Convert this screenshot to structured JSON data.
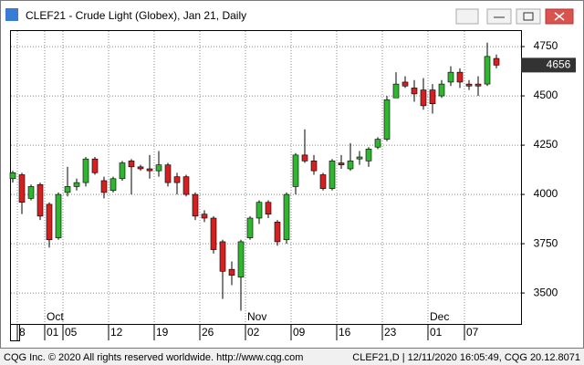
{
  "chart_data": {
    "type": "candlestick",
    "title": "CLEF21 - Crude Light (Globex), Jan 21, Daily",
    "footer_left": "CQG Inc. © 2020 All rights reserved worldwide. http://www.cqg.com",
    "footer_right": "CLEF21,D | 12/11/2020 16:05:49, CQG 20.12.8071",
    "categories": [
      null,
      "8",
      null,
      null,
      "01",
      null,
      "05",
      null,
      null,
      null,
      null,
      "12",
      null,
      null,
      null,
      null,
      "19",
      null,
      null,
      null,
      null,
      "26",
      null,
      null,
      null,
      null,
      "02",
      null,
      null,
      null,
      null,
      "09",
      null,
      null,
      null,
      null,
      "16",
      null,
      null,
      null,
      null,
      "23",
      null,
      null,
      null,
      null,
      "01",
      null,
      null,
      null,
      "07",
      null,
      null,
      null,
      null
    ],
    "months": [
      null,
      null,
      null,
      null,
      "Oct",
      null,
      null,
      null,
      null,
      null,
      null,
      null,
      null,
      null,
      null,
      null,
      null,
      null,
      null,
      null,
      null,
      null,
      null,
      null,
      null,
      null,
      "Nov",
      null,
      null,
      null,
      null,
      null,
      null,
      null,
      null,
      null,
      null,
      null,
      null,
      null,
      null,
      null,
      null,
      null,
      null,
      null,
      "Dec",
      null,
      null,
      null,
      null,
      null,
      null,
      null
    ],
    "open": [
      4080,
      4100,
      3980,
      4050,
      3950,
      3780,
      4010,
      4040,
      4060,
      4180,
      4070,
      4020,
      4080,
      4170,
      4140,
      4130,
      4120,
      4150,
      4090,
      4090,
      4000,
      3900,
      3880,
      3760,
      3620,
      3580,
      3780,
      3880,
      3960,
      3860,
      3770,
      4040,
      4200,
      4170,
      4100,
      4030,
      4160,
      4130,
      4180,
      4170,
      4240,
      4280,
      4490,
      4570,
      4540,
      4530,
      4530,
      4500,
      4570,
      4620,
      4560,
      4560,
      4560,
      4690
    ],
    "high": [
      4120,
      4110,
      4050,
      4060,
      3960,
      4010,
      4140,
      4080,
      4190,
      4190,
      4090,
      4090,
      4170,
      4180,
      4150,
      4200,
      4220,
      4160,
      4110,
      4100,
      4010,
      3920,
      3890,
      3770,
      3660,
      3770,
      3890,
      3970,
      3970,
      3870,
      4010,
      4210,
      4330,
      4200,
      4110,
      4180,
      4200,
      4260,
      4220,
      4240,
      4290,
      4500,
      4620,
      4600,
      4580,
      4590,
      4560,
      4580,
      4650,
      4640,
      4580,
      4600,
      4770,
      4710
    ],
    "low": [
      4060,
      3900,
      3970,
      3870,
      3730,
      3770,
      3990,
      4020,
      4040,
      4100,
      3980,
      4010,
      4070,
      4000,
      4120,
      4080,
      4090,
      4040,
      4000,
      3990,
      3870,
      3860,
      3700,
      3470,
      3540,
      3410,
      3770,
      3850,
      3880,
      3740,
      3750,
      4000,
      4160,
      4100,
      4020,
      4020,
      4130,
      4120,
      4150,
      4140,
      4230,
      4270,
      4490,
      4540,
      4470,
      4430,
      4410,
      4490,
      4550,
      4540,
      4530,
      4500,
      4550,
      4640
    ],
    "close": [
      4110,
      3960,
      4040,
      3890,
      3770,
      4000,
      4040,
      4060,
      4180,
      4110,
      4010,
      4080,
      4160,
      4140,
      4130,
      4120,
      4150,
      4060,
      4060,
      4000,
      3890,
      3880,
      3720,
      3610,
      3590,
      3760,
      3880,
      3960,
      3900,
      3760,
      4000,
      4200,
      4170,
      4120,
      4030,
      4170,
      4150,
      4170,
      4190,
      4230,
      4280,
      4480,
      4560,
      4550,
      4510,
      4450,
      4460,
      4560,
      4620,
      4570,
      4550,
      4550,
      4700,
      4656
    ],
    "up_color": "#2fb52f",
    "down_color": "#d42020",
    "ylim": [
      3343,
      4829
    ],
    "yticks": [
      3500,
      3750,
      4000,
      4250,
      4500,
      4750
    ],
    "grid": true
  }
}
